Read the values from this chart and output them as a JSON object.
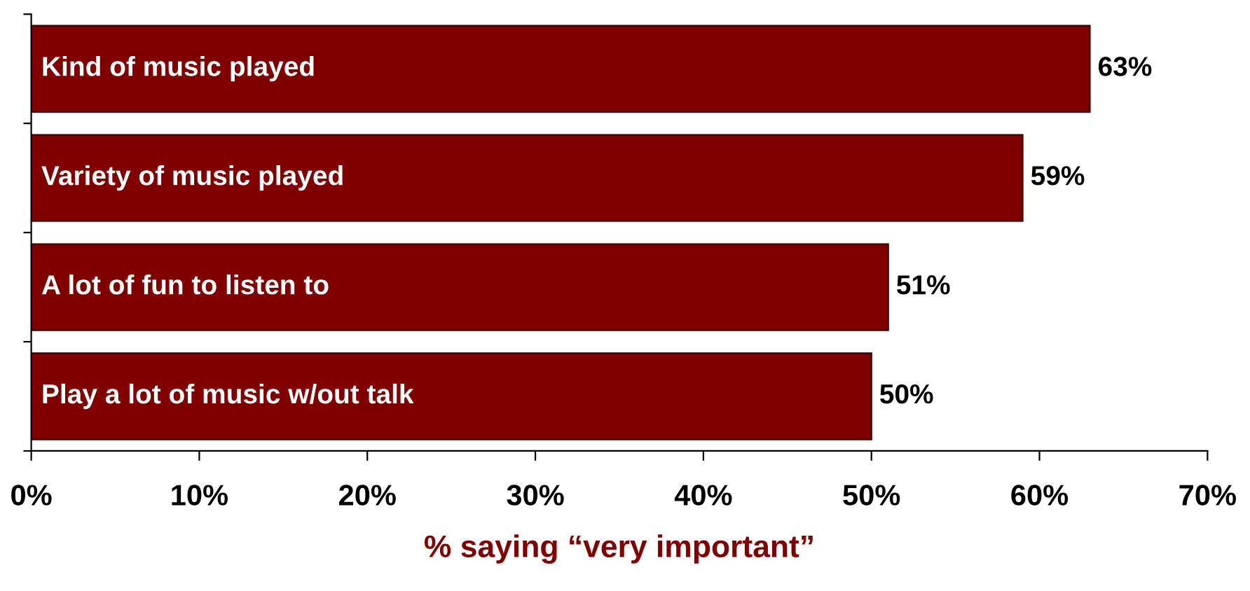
{
  "chart_data": {
    "type": "bar",
    "orientation": "horizontal",
    "xlabel": "% saying “very important”",
    "categories": [
      "Kind of music played",
      "Variety of music played",
      "A lot of fun to listen to",
      "Play a lot of music w/out talk"
    ],
    "values": [
      63,
      59,
      51,
      50
    ],
    "value_labels": [
      "63%",
      "59%",
      "51%",
      "50%"
    ],
    "color": "#800000",
    "xlim": [
      0,
      70
    ],
    "xticks": [
      {
        "value": 0,
        "label": "0%"
      },
      {
        "value": 10,
        "label": "10%"
      },
      {
        "value": 20,
        "label": "20%"
      },
      {
        "value": 30,
        "label": "30%"
      },
      {
        "value": 40,
        "label": "40%"
      },
      {
        "value": 50,
        "label": "50%"
      },
      {
        "value": 60,
        "label": "60%"
      },
      {
        "value": 70,
        "label": "70%"
      }
    ],
    "grid": false,
    "legend": false
  }
}
